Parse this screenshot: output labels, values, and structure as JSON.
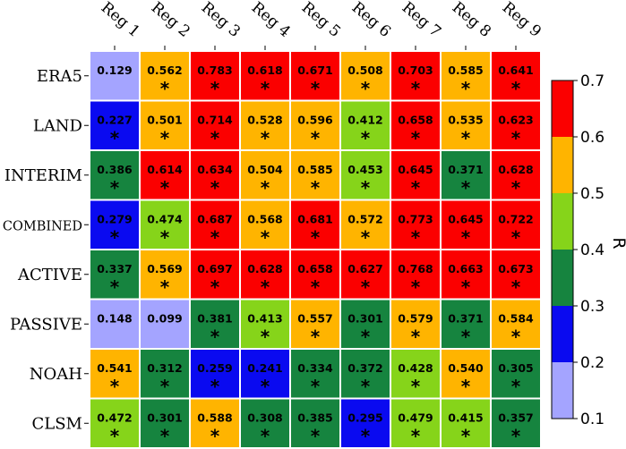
{
  "chart_data": {
    "type": "heatmap",
    "title": "",
    "columns": [
      "Reg 1",
      "Reg 2",
      "Reg 3",
      "Reg 4",
      "Reg 5",
      "Reg 6",
      "Reg 7",
      "Reg 8",
      "Reg 9"
    ],
    "rows": [
      "ERA5",
      "LAND",
      "INTERIM",
      "COMBINED",
      "ACTIVE",
      "PASSIVE",
      "NOAH",
      "CLSM"
    ],
    "values": [
      [
        0.129,
        0.562,
        0.783,
        0.618,
        0.671,
        0.508,
        0.703,
        0.585,
        0.641
      ],
      [
        0.227,
        0.501,
        0.714,
        0.528,
        0.596,
        0.412,
        0.658,
        0.535,
        0.623
      ],
      [
        0.386,
        0.614,
        0.634,
        0.504,
        0.585,
        0.453,
        0.645,
        0.371,
        0.628
      ],
      [
        0.279,
        0.474,
        0.687,
        0.568,
        0.681,
        0.572,
        0.773,
        0.645,
        0.722
      ],
      [
        0.337,
        0.569,
        0.697,
        0.628,
        0.658,
        0.627,
        0.768,
        0.663,
        0.673
      ],
      [
        0.148,
        0.099,
        0.381,
        0.413,
        0.557,
        0.301,
        0.579,
        0.371,
        0.584
      ],
      [
        0.541,
        0.312,
        0.259,
        0.241,
        0.334,
        0.372,
        0.428,
        0.54,
        0.305
      ],
      [
        0.472,
        0.301,
        0.588,
        0.308,
        0.385,
        0.295,
        0.479,
        0.415,
        0.357
      ]
    ],
    "value_labels": [
      [
        "0.129",
        "0.562",
        "0.783",
        "0.618",
        "0.671",
        "0.508",
        "0.703",
        "0.585",
        "0.641"
      ],
      [
        "0.227",
        "0.501",
        "0.714",
        "0.528",
        "0.596",
        "0.412",
        "0.658",
        "0.535",
        "0.623"
      ],
      [
        "0.386",
        "0.614",
        "0.634",
        "0.504",
        "0.585",
        "0.453",
        "0.645",
        "0.371",
        "0.628"
      ],
      [
        "0.279",
        "0.474",
        "0.687",
        "0.568",
        "0.681",
        "0.572",
        "0.773",
        "0.645",
        "0.722"
      ],
      [
        "0.337",
        "0.569",
        "0.697",
        "0.628",
        "0.658",
        "0.627",
        "0.768",
        "0.663",
        "0.673"
      ],
      [
        "0.148",
        "0.099",
        "0.381",
        "0.413",
        "0.557",
        "0.301",
        "0.579",
        "0.371",
        "0.584"
      ],
      [
        "0.541",
        "0.312",
        "0.259",
        "0.241",
        "0.334",
        "0.372",
        "0.428",
        "0.540",
        "0.305"
      ],
      [
        "0.472",
        "0.301",
        "0.588",
        "0.308",
        "0.385",
        "0.295",
        "0.479",
        "0.415",
        "0.357"
      ]
    ],
    "significant": [
      [
        false,
        true,
        true,
        true,
        true,
        true,
        true,
        true,
        true
      ],
      [
        true,
        true,
        true,
        true,
        true,
        true,
        true,
        true,
        true
      ],
      [
        true,
        true,
        true,
        true,
        true,
        true,
        true,
        true,
        true
      ],
      [
        true,
        true,
        true,
        true,
        true,
        true,
        true,
        true,
        true
      ],
      [
        true,
        true,
        true,
        true,
        true,
        true,
        true,
        true,
        true
      ],
      [
        false,
        false,
        true,
        true,
        true,
        true,
        true,
        true,
        true
      ],
      [
        true,
        true,
        true,
        true,
        true,
        true,
        true,
        true,
        true
      ],
      [
        true,
        true,
        true,
        true,
        true,
        true,
        true,
        true,
        true
      ]
    ],
    "significance_marker": "*",
    "colorbar": {
      "label": "R",
      "bounds": [
        0.1,
        0.2,
        0.3,
        0.4,
        0.5,
        0.6,
        0.7
      ],
      "tick_labels": [
        "0.1",
        "0.2",
        "0.3",
        "0.4",
        "0.5",
        "0.6",
        "0.7"
      ],
      "colors": [
        "#a4a4ff",
        "#0a0af0",
        "#16843f",
        "#86d41a",
        "#ffb400",
        "#fb0000"
      ]
    }
  }
}
